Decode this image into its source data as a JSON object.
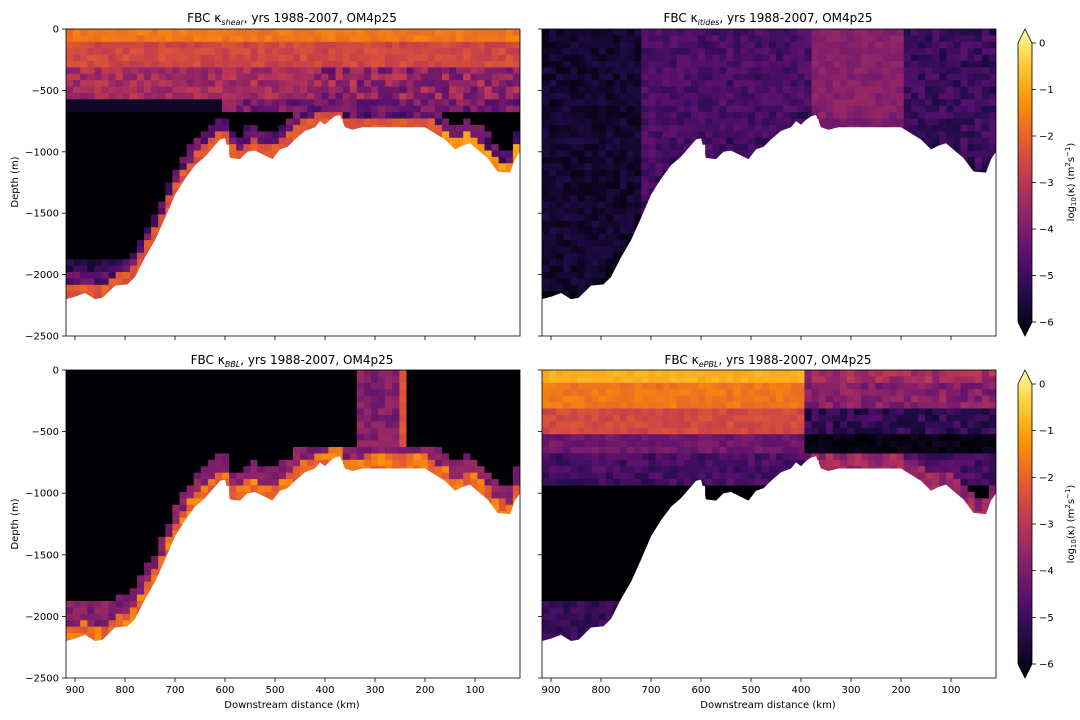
{
  "figure": {
    "colormap": "inferno",
    "bathymetry_color": "#ffffff",
    "background_color": "#ffffff"
  },
  "shared_axes": {
    "xlabel": "Downstream distance (km)",
    "ylabel": "Depth (m)",
    "x_ticks": [
      "900",
      "800",
      "700",
      "600",
      "500",
      "400",
      "300",
      "200",
      "100"
    ],
    "y_ticks": [
      "0",
      "−500",
      "−1000",
      "−1500",
      "−2000",
      "−2500"
    ]
  },
  "colorbars": [
    {
      "label": "log10(κ) (m²s⁻¹)",
      "ticks": [
        "0",
        "−1",
        "−2",
        "−3",
        "−4",
        "−5",
        "−6"
      ],
      "range": [
        -6,
        0
      ],
      "extend": "both"
    },
    {
      "label": "log10(κ) (m²s⁻¹)",
      "ticks": [
        "0",
        "−1",
        "−2",
        "−3",
        "−4",
        "−5",
        "−6"
      ],
      "range": [
        -6,
        0
      ],
      "extend": "both"
    }
  ],
  "chart_data": [
    {
      "type": "heatmap",
      "title_prefix": "FBC κ",
      "title_subscript": "shear",
      "title_suffix": ", yrs 1988-2007, OM4p25",
      "xlabel": "",
      "ylabel": "Depth (m)",
      "xlim": [
        918,
        10
      ],
      "ylim": [
        -2500,
        0
      ],
      "value_range": [
        -6,
        0
      ],
      "regime": "shear"
    },
    {
      "type": "heatmap",
      "title_prefix": "FBC κ",
      "title_subscript": "itides",
      "title_suffix": ", yrs 1988-2007, OM4p25",
      "xlabel": "",
      "ylabel": "",
      "xlim": [
        918,
        10
      ],
      "ylim": [
        -2500,
        0
      ],
      "value_range": [
        -6,
        0
      ],
      "regime": "itides"
    },
    {
      "type": "heatmap",
      "title_prefix": "FBC κ",
      "title_subscript": "BBL",
      "title_suffix": ", yrs 1988-2007, OM4p25",
      "xlabel": "Downstream distance (km)",
      "ylabel": "Depth (m)",
      "xlim": [
        918,
        10
      ],
      "ylim": [
        -2500,
        0
      ],
      "value_range": [
        -6,
        0
      ],
      "regime": "bbl"
    },
    {
      "type": "heatmap",
      "title_prefix": "FBC κ",
      "title_subscript": "ePBL",
      "title_suffix": ", yrs 1988-2007, OM4p25",
      "xlabel": "Downstream distance (km)",
      "ylabel": "",
      "xlim": [
        918,
        10
      ],
      "ylim": [
        -2500,
        0
      ],
      "value_range": [
        -6,
        0
      ],
      "regime": "epbl"
    }
  ]
}
